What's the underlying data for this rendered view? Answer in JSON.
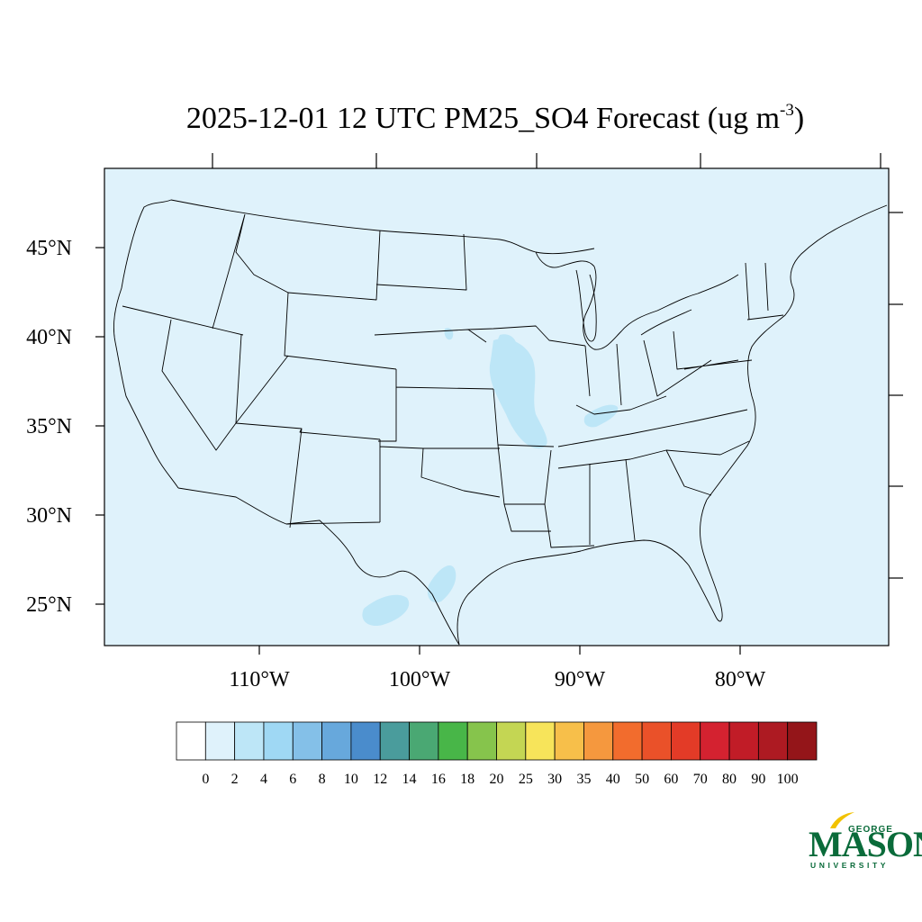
{
  "title": {
    "main": "2025-12-01 12 UTC PM25_SO4 Forecast (ug m",
    "superscript": "-3",
    "close": ")"
  },
  "map": {
    "lat_labels": [
      "45°N",
      "40°N",
      "35°N",
      "30°N",
      "25°N"
    ],
    "lat_values": [
      45,
      40,
      35,
      30,
      25
    ],
    "lon_labels": [
      "110°W",
      "100°W",
      "90°W",
      "80°W"
    ],
    "lon_values": [
      -110,
      -100,
      -90,
      -80
    ],
    "background_color": "#dff2fb",
    "line_color": "#000000"
  },
  "colorbar": {
    "labels": [
      "0",
      "2",
      "4",
      "6",
      "8",
      "10",
      "12",
      "14",
      "16",
      "18",
      "20",
      "25",
      "30",
      "35",
      "40",
      "50",
      "60",
      "70",
      "80",
      "90",
      "100"
    ],
    "colors": [
      "#ffffff",
      "#dff2fb",
      "#bde6f7",
      "#9fd8f4",
      "#84c0e8",
      "#67a8dc",
      "#4a8ccc",
      "#4a9c9c",
      "#4aa873",
      "#48b648",
      "#86c44c",
      "#c4d653",
      "#f7e45a",
      "#f7bf4a",
      "#f5983e",
      "#f26c2d",
      "#ea5129",
      "#e33b27",
      "#d42230",
      "#c11c27",
      "#ad1a22",
      "#941519"
    ]
  },
  "logo": {
    "top": "GEORGE",
    "main": "MASON",
    "bottom": "UNIVERSITY",
    "color": "#0a6b3a",
    "accent": "#f2c200"
  }
}
